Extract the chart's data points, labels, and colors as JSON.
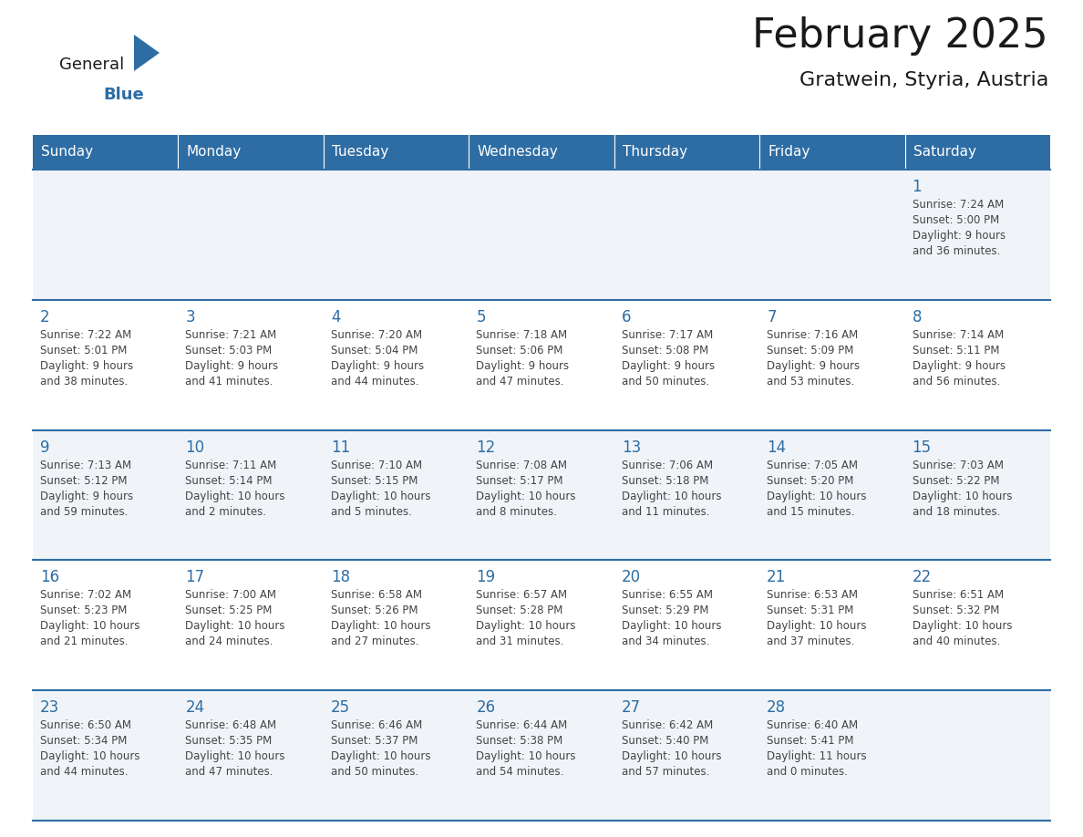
{
  "title": "February 2025",
  "subtitle": "Gratwein, Styria, Austria",
  "days_of_week": [
    "Sunday",
    "Monday",
    "Tuesday",
    "Wednesday",
    "Thursday",
    "Friday",
    "Saturday"
  ],
  "header_bg": "#2E6DA4",
  "header_text_color": "#FFFFFF",
  "cell_bg_odd": "#F0F4F8",
  "cell_bg_even": "#FFFFFF",
  "border_color": "#2E6DA4",
  "text_color": "#444444",
  "day_num_color": "#2E6DA4",
  "title_color": "#1a1a1a",
  "subtitle_color": "#1a1a1a",
  "logo_general_color": "#1a1a1a",
  "logo_blue_color": "#2E6DA4",
  "calendar_data": {
    "1": {
      "sunrise": "7:24 AM",
      "sunset": "5:00 PM",
      "daylight": "9 hours and 36 minutes."
    },
    "2": {
      "sunrise": "7:22 AM",
      "sunset": "5:01 PM",
      "daylight": "9 hours and 38 minutes."
    },
    "3": {
      "sunrise": "7:21 AM",
      "sunset": "5:03 PM",
      "daylight": "9 hours and 41 minutes."
    },
    "4": {
      "sunrise": "7:20 AM",
      "sunset": "5:04 PM",
      "daylight": "9 hours and 44 minutes."
    },
    "5": {
      "sunrise": "7:18 AM",
      "sunset": "5:06 PM",
      "daylight": "9 hours and 47 minutes."
    },
    "6": {
      "sunrise": "7:17 AM",
      "sunset": "5:08 PM",
      "daylight": "9 hours and 50 minutes."
    },
    "7": {
      "sunrise": "7:16 AM",
      "sunset": "5:09 PM",
      "daylight": "9 hours and 53 minutes."
    },
    "8": {
      "sunrise": "7:14 AM",
      "sunset": "5:11 PM",
      "daylight": "9 hours and 56 minutes."
    },
    "9": {
      "sunrise": "7:13 AM",
      "sunset": "5:12 PM",
      "daylight": "9 hours and 59 minutes."
    },
    "10": {
      "sunrise": "7:11 AM",
      "sunset": "5:14 PM",
      "daylight": "10 hours and 2 minutes."
    },
    "11": {
      "sunrise": "7:10 AM",
      "sunset": "5:15 PM",
      "daylight": "10 hours and 5 minutes."
    },
    "12": {
      "sunrise": "7:08 AM",
      "sunset": "5:17 PM",
      "daylight": "10 hours and 8 minutes."
    },
    "13": {
      "sunrise": "7:06 AM",
      "sunset": "5:18 PM",
      "daylight": "10 hours and 11 minutes."
    },
    "14": {
      "sunrise": "7:05 AM",
      "sunset": "5:20 PM",
      "daylight": "10 hours and 15 minutes."
    },
    "15": {
      "sunrise": "7:03 AM",
      "sunset": "5:22 PM",
      "daylight": "10 hours and 18 minutes."
    },
    "16": {
      "sunrise": "7:02 AM",
      "sunset": "5:23 PM",
      "daylight": "10 hours and 21 minutes."
    },
    "17": {
      "sunrise": "7:00 AM",
      "sunset": "5:25 PM",
      "daylight": "10 hours and 24 minutes."
    },
    "18": {
      "sunrise": "6:58 AM",
      "sunset": "5:26 PM",
      "daylight": "10 hours and 27 minutes."
    },
    "19": {
      "sunrise": "6:57 AM",
      "sunset": "5:28 PM",
      "daylight": "10 hours and 31 minutes."
    },
    "20": {
      "sunrise": "6:55 AM",
      "sunset": "5:29 PM",
      "daylight": "10 hours and 34 minutes."
    },
    "21": {
      "sunrise": "6:53 AM",
      "sunset": "5:31 PM",
      "daylight": "10 hours and 37 minutes."
    },
    "22": {
      "sunrise": "6:51 AM",
      "sunset": "5:32 PM",
      "daylight": "10 hours and 40 minutes."
    },
    "23": {
      "sunrise": "6:50 AM",
      "sunset": "5:34 PM",
      "daylight": "10 hours and 44 minutes."
    },
    "24": {
      "sunrise": "6:48 AM",
      "sunset": "5:35 PM",
      "daylight": "10 hours and 47 minutes."
    },
    "25": {
      "sunrise": "6:46 AM",
      "sunset": "5:37 PM",
      "daylight": "10 hours and 50 minutes."
    },
    "26": {
      "sunrise": "6:44 AM",
      "sunset": "5:38 PM",
      "daylight": "10 hours and 54 minutes."
    },
    "27": {
      "sunrise": "6:42 AM",
      "sunset": "5:40 PM",
      "daylight": "10 hours and 57 minutes."
    },
    "28": {
      "sunrise": "6:40 AM",
      "sunset": "5:41 PM",
      "daylight": "11 hours and 0 minutes."
    }
  },
  "week_layout": [
    [
      null,
      null,
      null,
      null,
      null,
      null,
      1
    ],
    [
      2,
      3,
      4,
      5,
      6,
      7,
      8
    ],
    [
      9,
      10,
      11,
      12,
      13,
      14,
      15
    ],
    [
      16,
      17,
      18,
      19,
      20,
      21,
      22
    ],
    [
      23,
      24,
      25,
      26,
      27,
      28,
      null
    ]
  ]
}
